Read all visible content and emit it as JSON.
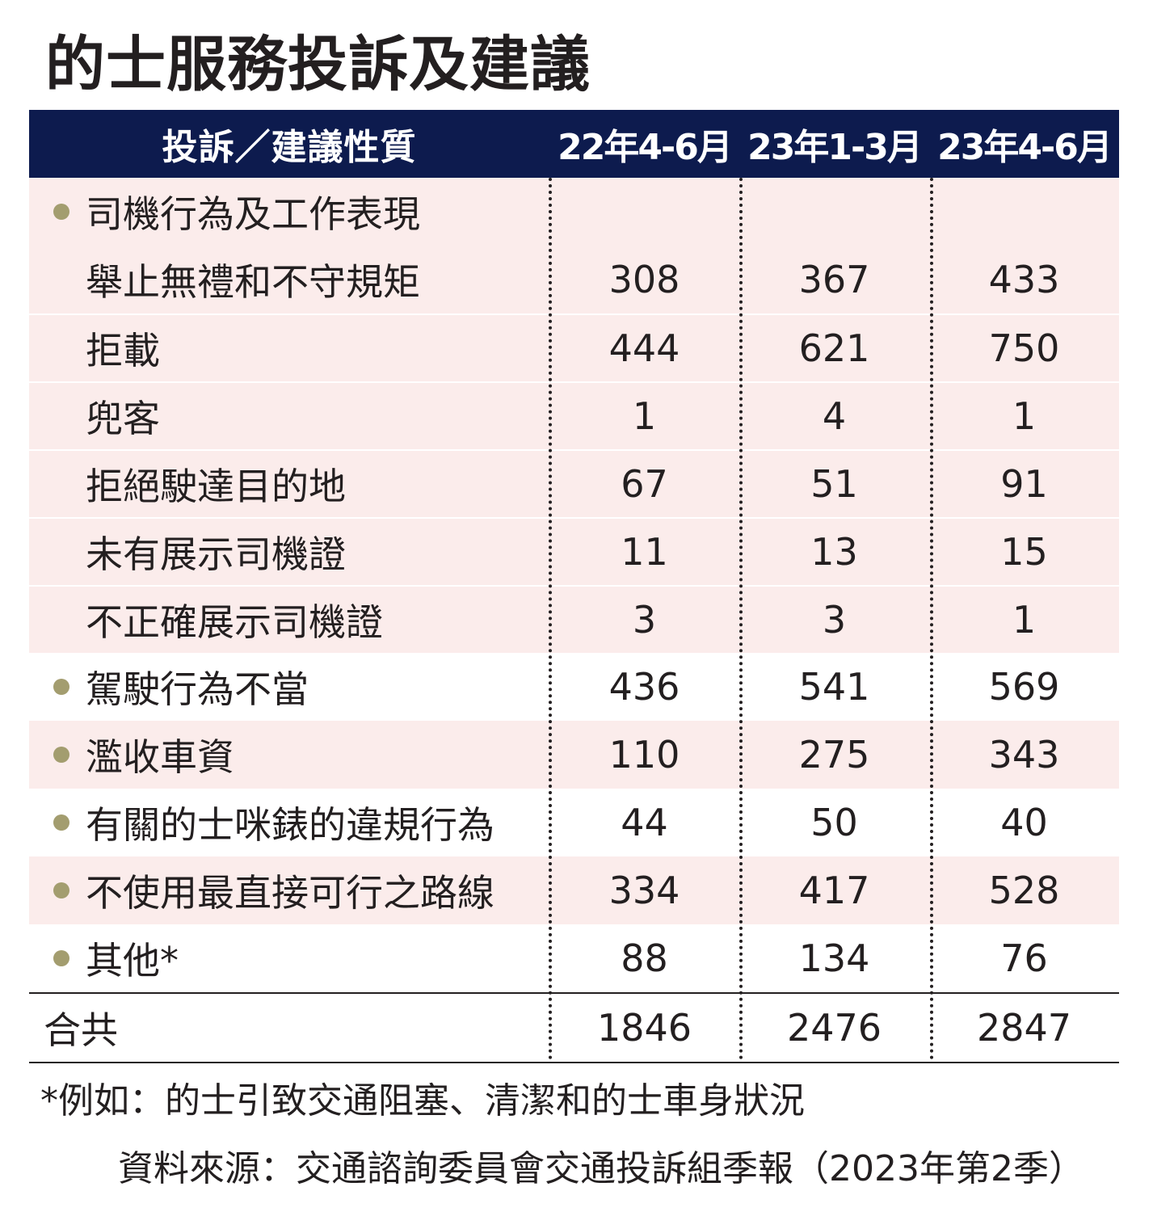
{
  "chart_data": {
    "type": "table",
    "title": "的士服務投訴及建議",
    "columns": [
      "投訴／建議性質",
      "22年4-6月",
      "23年1-3月",
      "23年4-6月"
    ],
    "group_heading": "司機行為及工作表現",
    "rows": [
      {
        "label": "舉止無禮和不守規矩",
        "values": [
          "308",
          "367",
          "433"
        ]
      },
      {
        "label": "拒載",
        "values": [
          "444",
          "621",
          "750"
        ]
      },
      {
        "label": "兜客",
        "values": [
          "1",
          "4",
          "1"
        ]
      },
      {
        "label": "拒絕駛達目的地",
        "values": [
          "67",
          "51",
          "91"
        ]
      },
      {
        "label": "未有展示司機證",
        "values": [
          "11",
          "13",
          "15"
        ]
      },
      {
        "label": "不正確展示司機證",
        "values": [
          "3",
          "3",
          "1"
        ]
      },
      {
        "label": "駕駛行為不當",
        "values": [
          "436",
          "541",
          "569"
        ]
      },
      {
        "label": "濫收車資",
        "values": [
          "110",
          "275",
          "343"
        ]
      },
      {
        "label": "有關的士咪錶的違規行為",
        "values": [
          "44",
          "50",
          "40"
        ]
      },
      {
        "label": "不使用最直接可行之路線",
        "values": [
          "334",
          "417",
          "528"
        ]
      },
      {
        "label": "其他*",
        "values": [
          "88",
          "134",
          "76"
        ]
      }
    ],
    "total": {
      "label": "合共",
      "values": [
        "1846",
        "2476",
        "2847"
      ]
    },
    "footnote": "*例如：的士引致交通阻塞、清潔和的士車身狀況",
    "source": "資料來源：交通諮詢委員會交通投訴組季報（2023年第2季）"
  },
  "colors": {
    "header_bg": "#0d1b4e",
    "row_pink": "#fbeceb",
    "bullet": "#a39d6f"
  }
}
